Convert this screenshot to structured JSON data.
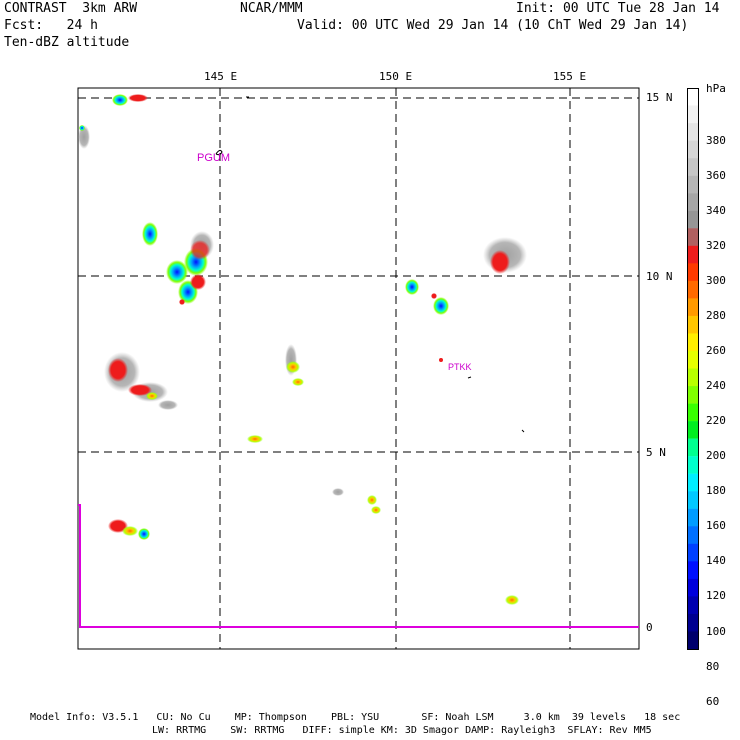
{
  "header": {
    "model": "CONTRAST  3km ARW",
    "org": "NCAR/MMM",
    "init": "Init: 00 UTC Tue 28 Jan 14",
    "fcst": "Fcst:   24 h",
    "valid": "Valid: 00 UTC Wed 29 Jan 14 (10 ChT Wed 29 Jan 14)",
    "field": "Ten-dBZ altitude"
  },
  "map": {
    "lon_labels": [
      "145 E",
      "150 E",
      "155 E"
    ],
    "lat_labels": [
      "15 N",
      "10 N",
      "5 N",
      "0"
    ],
    "stations": [
      {
        "label": "PGUM",
        "color": "#cc00cc"
      },
      {
        "label": "PTKK",
        "color": "#cc00cc"
      }
    ],
    "boundary_color": "#dd00dd"
  },
  "colorbar": {
    "unit": "hPa",
    "labels": [
      "380",
      "360",
      "340",
      "320",
      "300",
      "280",
      "260",
      "240",
      "220",
      "200",
      "180",
      "160",
      "140",
      "120",
      "100",
      "80",
      "60"
    ],
    "colors": [
      "#ffffff",
      "#f2f2f2",
      "#e4e4e4",
      "#d6d6d6",
      "#c6c6c6",
      "#b6b6b6",
      "#a6a6a6",
      "#969696",
      "#b06060",
      "#ee1c1c",
      "#ff3a00",
      "#ff6a00",
      "#ff9a00",
      "#ffc600",
      "#ffee00",
      "#e6ff00",
      "#b8ff00",
      "#80ff00",
      "#38ff00",
      "#00ee20",
      "#00ff90",
      "#00ffcc",
      "#00eeff",
      "#00c8ff",
      "#009cff",
      "#0070ff",
      "#0040ff",
      "#0010ff",
      "#0000dc",
      "#0000b0",
      "#000090",
      "#00006c"
    ]
  },
  "footer": {
    "line1": "Model Info: V3.5.1   CU: No Cu    MP: Thompson    PBL: YSU       SF: Noah LSM     3.0 km  39 levels   18 sec",
    "line2": "LW: RRTMG    SW: RRTMG   DIFF: simple KM: 3D Smagor DAMP: Rayleigh3  SFLAY: Rev MM5"
  }
}
